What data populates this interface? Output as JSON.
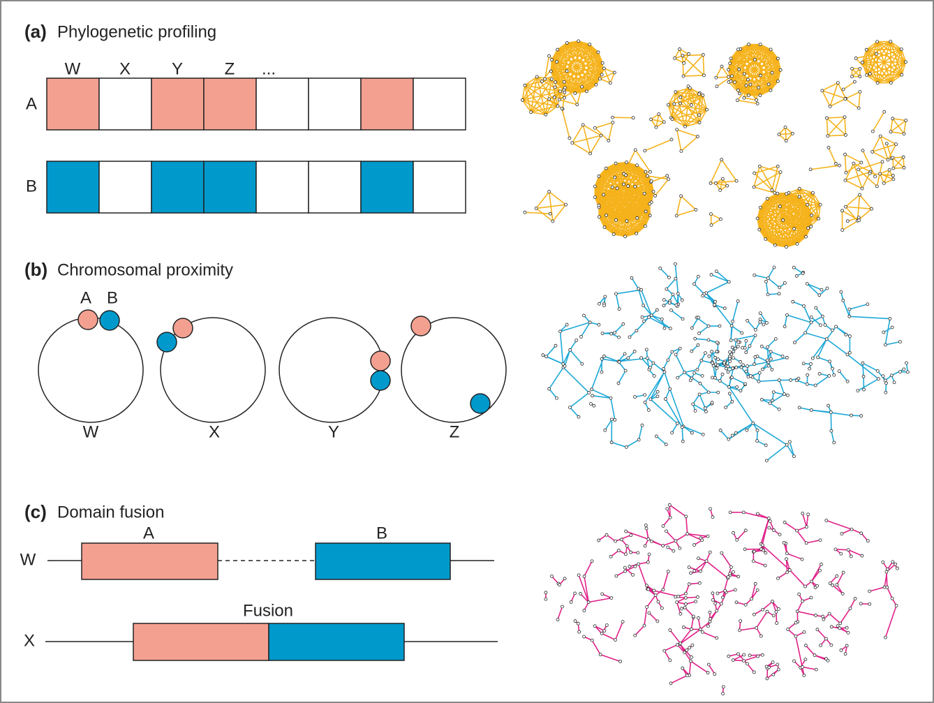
{
  "panels": [
    {
      "label": "(a)",
      "title": "Phylogenetic profiling",
      "columns": [
        "W",
        "X",
        "Y",
        "Z",
        "..."
      ],
      "rows": [
        "A",
        "B"
      ]
    },
    {
      "label": "(b)",
      "title": "Chromosomal proximity",
      "genes": [
        "A",
        "B"
      ],
      "genomes": [
        "W",
        "X",
        "Y",
        "Z"
      ]
    },
    {
      "label": "(c)",
      "title": "Domain fusion",
      "sequences": [
        "W",
        "X"
      ],
      "domains": [
        "A",
        "B"
      ],
      "fusion_label": "Fusion"
    }
  ]
}
